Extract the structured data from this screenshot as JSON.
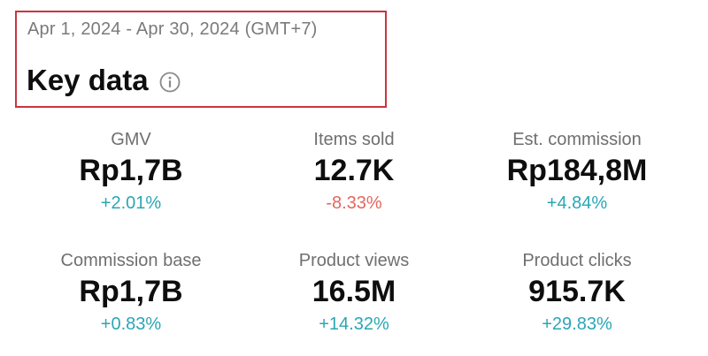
{
  "header": {
    "date_range": "Apr 1, 2024 - Apr 30, 2024 (GMT+7)",
    "title": "Key data",
    "info_icon": "info-icon"
  },
  "colors": {
    "highlight_border": "#c8363f",
    "positive": "#2aa6b5",
    "negative": "#e0685f"
  },
  "metrics": [
    {
      "label": "GMV",
      "value": "Rp1,7B",
      "change": "+2.01%",
      "trend": "positive"
    },
    {
      "label": "Items sold",
      "value": "12.7K",
      "change": "-8.33%",
      "trend": "negative"
    },
    {
      "label": "Est. commission",
      "value": "Rp184,8M",
      "change": "+4.84%",
      "trend": "positive"
    },
    {
      "label": "Commission base",
      "value": "Rp1,7B",
      "change": "+0.83%",
      "trend": "positive"
    },
    {
      "label": "Product views",
      "value": "16.5M",
      "change": "+14.32%",
      "trend": "positive"
    },
    {
      "label": "Product clicks",
      "value": "915.7K",
      "change": "+29.83%",
      "trend": "positive"
    }
  ]
}
